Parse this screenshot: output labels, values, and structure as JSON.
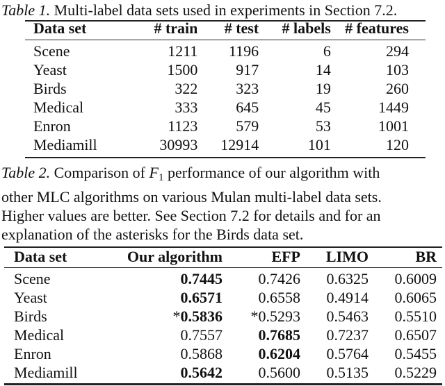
{
  "table1": {
    "caption_label": "Table 1.",
    "caption_text": " Multi-label data sets used in experiments in Section 7.2.",
    "headers": [
      "Data set",
      "# train",
      "# test",
      "# labels",
      "# features"
    ],
    "rows": [
      [
        "Scene",
        "1211",
        "1196",
        "6",
        "294"
      ],
      [
        "Yeast",
        "1500",
        "917",
        "14",
        "103"
      ],
      [
        "Birds",
        "322",
        "323",
        "19",
        "260"
      ],
      [
        "Medical",
        "333",
        "645",
        "45",
        "1449"
      ],
      [
        "Enron",
        "1123",
        "579",
        "53",
        "1001"
      ],
      [
        "Mediamill",
        "30993",
        "12914",
        "101",
        "120"
      ]
    ]
  },
  "table2": {
    "caption_label": "Table 2.",
    "caption_lines": [
      {
        "pre": " Comparison of ",
        "math": "F",
        "sub": "1",
        "post": " performance of our algorithm with"
      },
      {
        "text": "other MLC algorithms on various Mulan multi-label data sets."
      },
      {
        "text": "Higher values are better.  See Section 7.2 for details and for an"
      },
      {
        "text": "explanation of the asterisks for the Birds data set."
      }
    ],
    "headers": [
      "Data set",
      "Our algorithm",
      "EFP",
      "LIMO",
      "BR"
    ],
    "rows": [
      {
        "name": "Scene",
        "values": [
          "0.7445",
          "0.7426",
          "0.6325",
          "0.6009"
        ],
        "bold": [
          true,
          false,
          false,
          false
        ],
        "prefix": [
          "",
          "",
          "",
          ""
        ]
      },
      {
        "name": "Yeast",
        "values": [
          "0.6571",
          "0.6558",
          "0.4914",
          "0.6065"
        ],
        "bold": [
          true,
          false,
          false,
          false
        ],
        "prefix": [
          "",
          "",
          "",
          ""
        ]
      },
      {
        "name": "Birds",
        "values": [
          "0.5836",
          "0.5293",
          "0.5463",
          "0.5510"
        ],
        "bold": [
          true,
          false,
          false,
          false
        ],
        "prefix": [
          "*",
          "*",
          "",
          ""
        ]
      },
      {
        "name": "Medical",
        "values": [
          "0.7557",
          "0.7685",
          "0.7237",
          "0.6507"
        ],
        "bold": [
          false,
          true,
          false,
          false
        ],
        "prefix": [
          "",
          "",
          "",
          ""
        ]
      },
      {
        "name": "Enron",
        "values": [
          "0.5868",
          "0.6204",
          "0.5764",
          "0.5455"
        ],
        "bold": [
          false,
          true,
          false,
          false
        ],
        "prefix": [
          "",
          "",
          "",
          ""
        ]
      },
      {
        "name": "Mediamill",
        "values": [
          "0.5642",
          "0.5600",
          "0.5135",
          "0.5229"
        ],
        "bold": [
          true,
          false,
          false,
          false
        ],
        "prefix": [
          "",
          "",
          "",
          ""
        ]
      }
    ]
  }
}
